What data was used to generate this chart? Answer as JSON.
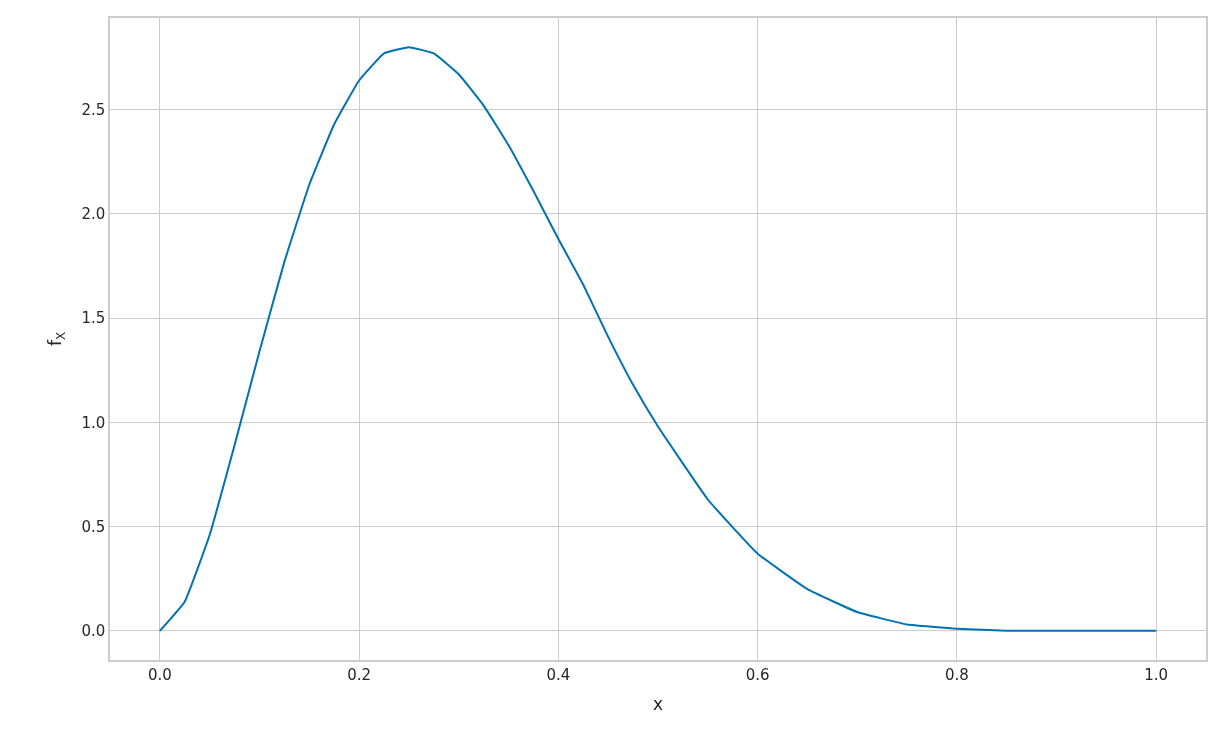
{
  "chart_data": {
    "type": "line",
    "xlabel": "x",
    "ylabel": "f$_{X}$",
    "x": [
      0,
      0.025,
      0.05,
      0.075,
      0.1,
      0.125,
      0.15,
      0.175,
      0.2,
      0.225,
      0.25,
      0.275,
      0.3,
      0.325,
      0.35,
      0.375,
      0.4,
      0.425,
      0.45,
      0.475,
      0.5,
      0.55,
      0.6,
      0.65,
      0.7,
      0.75,
      0.8,
      0.85,
      0.9,
      0.95,
      1.0
    ],
    "series": [
      {
        "color": "#0072b2",
        "values": [
          0,
          0.14,
          0.46,
          0.89,
          1.34,
          1.77,
          2.14,
          2.43,
          2.64,
          2.77,
          2.8,
          2.77,
          2.67,
          2.52,
          2.33,
          2.11,
          1.88,
          1.66,
          1.41,
          1.18,
          0.98,
          0.63,
          0.37,
          0.2,
          0.09,
          0.03,
          0.01,
          0,
          0,
          0,
          0
        ]
      }
    ],
    "xlim": [
      -0.05,
      1.05
    ],
    "ylim": [
      -0.14,
      2.94
    ],
    "xticks": [
      {
        "value": 0,
        "label": "0.0"
      },
      {
        "value": 0.2,
        "label": "0.2"
      },
      {
        "value": 0.4,
        "label": "0.4"
      },
      {
        "value": 0.6,
        "label": "0.6"
      },
      {
        "value": 0.8,
        "label": "0.8"
      },
      {
        "value": 1.0,
        "label": "1.0"
      }
    ],
    "yticks": [
      {
        "value": 0,
        "label": "0.0"
      },
      {
        "value": 0.5,
        "label": "0.5"
      },
      {
        "value": 1.0,
        "label": "1.0"
      },
      {
        "value": 1.5,
        "label": "1.5"
      },
      {
        "value": 2.0,
        "label": "2.0"
      },
      {
        "value": 2.5,
        "label": "2.5"
      }
    ],
    "grid": true,
    "marker": "none",
    "line_style": "solid"
  }
}
